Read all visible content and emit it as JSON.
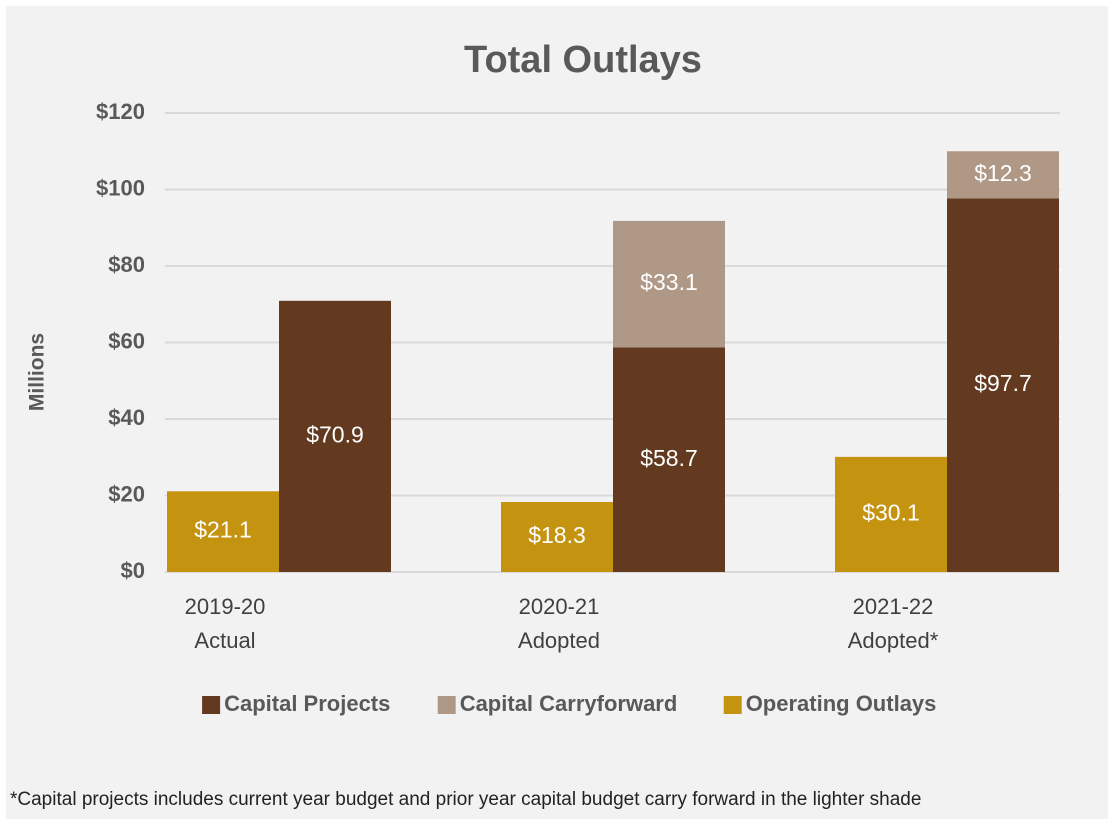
{
  "chart_data": {
    "type": "grouped_stacked_bar",
    "title": "Total Outlays",
    "y_axis_label": "Millions",
    "categories": [
      [
        "2019-20",
        "Actual"
      ],
      [
        "2020-21",
        "Adopted"
      ],
      [
        "2021-22",
        "Adopted*"
      ]
    ],
    "series": [
      {
        "name": "Capital Projects",
        "color": "#633a1f",
        "stack": "capital",
        "values": [
          70.9,
          58.7,
          97.7
        ],
        "value_labels": [
          "$70.9",
          "$58.7",
          "$97.7"
        ]
      },
      {
        "name": "Capital Carryforward",
        "color": "#b09886",
        "stack": "capital",
        "values": [
          null,
          33.1,
          12.3
        ],
        "value_labels": [
          null,
          "$33.1",
          "$12.3"
        ]
      },
      {
        "name": "Operating Outlays",
        "color": "#c4930f",
        "stack": "operating",
        "values": [
          21.1,
          18.3,
          30.1
        ],
        "value_labels": [
          "$21.1",
          "$18.3",
          "$30.1"
        ]
      }
    ],
    "ylim": [
      0,
      120
    ],
    "yticks": [
      {
        "value": 0,
        "label": "$0"
      },
      {
        "value": 20,
        "label": "$20"
      },
      {
        "value": 40,
        "label": "$40"
      },
      {
        "value": 60,
        "label": "$60"
      },
      {
        "value": 80,
        "label": "$80"
      },
      {
        "value": 100,
        "label": "$100"
      },
      {
        "value": 120,
        "label": "$120"
      }
    ],
    "grid": true,
    "legend": "bottom",
    "footnote": "*Capital projects includes current year budget and prior year capital budget carry forward in the lighter shade"
  }
}
